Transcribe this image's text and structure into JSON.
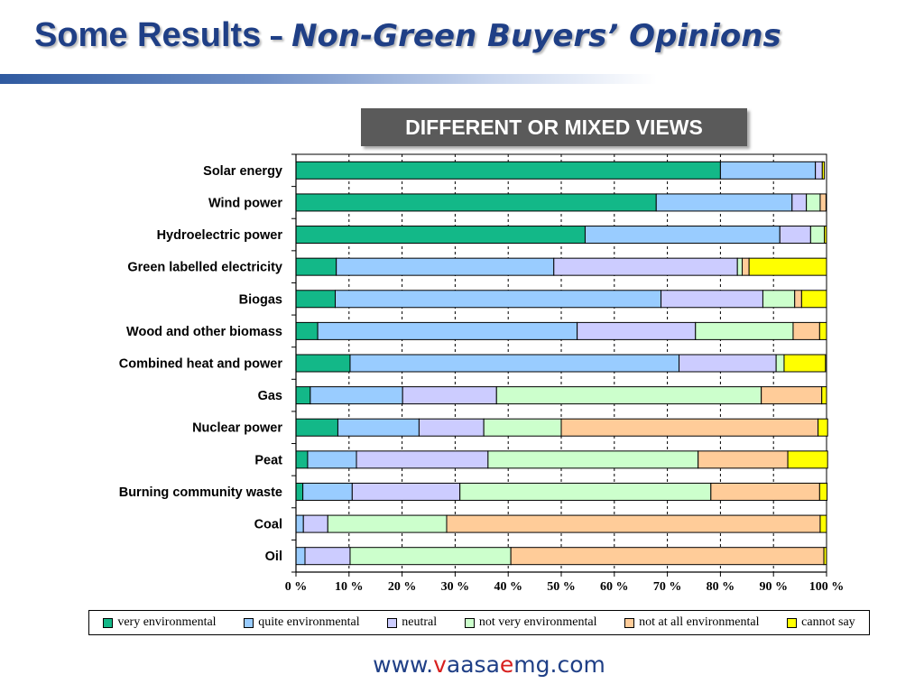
{
  "slide": {
    "title_main": "Some Results",
    "title_dash": "–",
    "title_sub": "Non-Green Buyers’ Opinions",
    "footer_prefix": "www.",
    "footer_v": "v",
    "footer_aasa": "aasa",
    "footer_e": "e",
    "footer_suffix": "mg.com"
  },
  "colors": {
    "title": "#1f3f86",
    "very environmental": "#13b888",
    "quite environmental": "#99ccff",
    "neutral": "#ccccff",
    "not very environmental": "#ccffcc",
    "not at all environmental": "#ffcc99",
    "cannot say": "#ffff00"
  },
  "chart_data": {
    "type": "bar",
    "orientation": "horizontal",
    "stacked": true,
    "title": "DIFFERENT OR MIXED VIEWS",
    "categories": [
      "Solar energy",
      "Wind power",
      "Hydroelectric power",
      "Green labelled electricity",
      "Biogas",
      "Wood and other biomass",
      "Combined heat and power",
      "Gas",
      "Nuclear power",
      "Peat",
      "Burning community waste",
      "Coal",
      "Oil"
    ],
    "series": [
      {
        "name": "very environmental",
        "values": [
          80,
          67.9,
          54.5,
          7.6,
          7.4,
          4.1,
          10.2,
          2.7,
          7.9,
          2.2,
          1.3,
          0,
          0
        ]
      },
      {
        "name": "quite environmental",
        "values": [
          17.9,
          25.6,
          36.7,
          41,
          61.4,
          48.9,
          62,
          17.4,
          15.3,
          9.2,
          9.3,
          1.4,
          1.7
        ]
      },
      {
        "name": "neutral",
        "values": [
          1.3,
          2.7,
          5.8,
          34.6,
          19.2,
          22.3,
          18.3,
          17.7,
          12.2,
          24.8,
          20.3,
          4.6,
          8.5
        ]
      },
      {
        "name": "not very environmental",
        "values": [
          0,
          2.6,
          2.6,
          0.9,
          6,
          18.4,
          1.5,
          49.9,
          14.6,
          39.6,
          47.3,
          22.4,
          30.3
        ]
      },
      {
        "name": "not at all environmental",
        "values": [
          0,
          1.1,
          0,
          1.3,
          1.3,
          5,
          0,
          11.4,
          48.4,
          16.9,
          20.5,
          70.4,
          59
        ]
      },
      {
        "name": "cannot say",
        "values": [
          0.4,
          0,
          0.4,
          14.6,
          4.7,
          1.3,
          7.8,
          0.9,
          1.8,
          7.5,
          1.4,
          1.2,
          0.5
        ]
      }
    ],
    "xlim": [
      0,
      100
    ],
    "x_ticks": [
      "0 %",
      "10 %",
      "20 %",
      "30 %",
      "40 %",
      "50 %",
      "60 %",
      "70 %",
      "80 %",
      "90 %",
      "100 %"
    ],
    "grid": true,
    "legend_position": "bottom"
  }
}
